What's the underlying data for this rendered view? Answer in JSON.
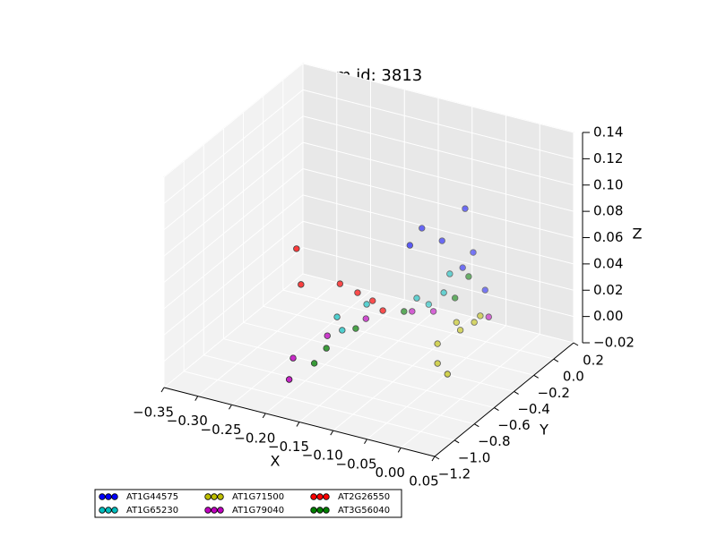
{
  "chart_data": {
    "type": "scatter3d",
    "title": "term id: 3813",
    "x_label": "X",
    "y_label": "Y",
    "z_label": "Z",
    "xlim": [
      -0.35,
      0.05
    ],
    "ylim": [
      -1.2,
      0.2
    ],
    "zlim": [
      -0.02,
      0.14
    ],
    "xticks": [
      {
        "value": -0.35,
        "label": "−0.35"
      },
      {
        "value": -0.3,
        "label": "−0.30"
      },
      {
        "value": -0.25,
        "label": "−0.25"
      },
      {
        "value": -0.2,
        "label": "−0.20"
      },
      {
        "value": -0.15,
        "label": "−0.15"
      },
      {
        "value": -0.1,
        "label": "−0.10"
      },
      {
        "value": -0.05,
        "label": "−0.05"
      },
      {
        "value": 0,
        "label": "0.00"
      },
      {
        "value": 0.05,
        "label": "0.05"
      }
    ],
    "yticks": [
      {
        "value": -1.2,
        "label": "−1.2"
      },
      {
        "value": -1.0,
        "label": "−1.0"
      },
      {
        "value": -0.8,
        "label": "−0.8"
      },
      {
        "value": -0.6,
        "label": "−0.6"
      },
      {
        "value": -0.4,
        "label": "−0.4"
      },
      {
        "value": -0.2,
        "label": "−0.2"
      },
      {
        "value": 0,
        "label": "0.0"
      },
      {
        "value": 0.2,
        "label": "0.2"
      }
    ],
    "zticks": [
      {
        "value": -0.02,
        "label": "−0.02"
      },
      {
        "value": 0,
        "label": "0.00"
      },
      {
        "value": 0.02,
        "label": "0.02"
      },
      {
        "value": 0.04,
        "label": "0.04"
      },
      {
        "value": 0.06,
        "label": "0.06"
      },
      {
        "value": 0.08,
        "label": "0.08"
      },
      {
        "value": 0.1,
        "label": "0.10"
      },
      {
        "value": 0.12,
        "label": "0.12"
      },
      {
        "value": 0.14,
        "label": "0.14"
      }
    ],
    "series": [
      {
        "name": "AT1G44575",
        "color": "#0000ff",
        "x": [
          -0.076,
          -0.134,
          -0.133,
          -0.112,
          -0.079,
          -0.088,
          -0.068
        ],
        "y": [
          -0.034,
          -0.074,
          -0.202,
          -0.021,
          0.068,
          0.023,
          0.113
        ],
        "z": [
          0.08,
          0.06,
          0.055,
          0.05,
          0.04,
          0.03,
          0.01
        ]
      },
      {
        "name": "AT1G65230",
        "color": "#00bfbf",
        "x": [
          -0.134,
          -0.094,
          -0.102,
          -0.191,
          -0.216,
          -0.21,
          -0.13
        ],
        "y": [
          -0.126,
          -0.066,
          -0.072,
          -0.242,
          -0.37,
          -0.359,
          -0.033
        ],
        "z": [
          0.01,
          0.03,
          0.015,
          0.005,
          0,
          -0.01,
          0
        ]
      },
      {
        "name": "AT1G71500",
        "color": "#bfbf00",
        "x": [
          -0.084,
          -0.075,
          -0.049,
          -0.074,
          -0.068,
          -0.054,
          -0.047
        ],
        "y": [
          -0.258,
          -0.319,
          -0.396,
          -0.135,
          -0.137,
          -0.092,
          -0.079
        ],
        "z": [
          -0.01,
          -0.02,
          -0.02,
          0,
          -0.005,
          0,
          0.005
        ]
      },
      {
        "name": "AT1G79040",
        "color": "#bf00bf",
        "x": [
          -0.22,
          -0.227,
          -0.201,
          -0.172,
          -0.13,
          -0.106,
          -0.036
        ],
        "y": [
          -0.825,
          -0.738,
          -0.57,
          -0.379,
          -0.2,
          -0.149,
          -0.069
        ],
        "z": [
          -0.02,
          -0.01,
          0,
          0.005,
          0.005,
          0.005,
          0.005
        ]
      },
      {
        "name": "AT2G26550",
        "color": "#ff0000",
        "x": [
          -0.247,
          -0.247,
          -0.204,
          -0.181,
          -0.162,
          -0.146
        ],
        "y": [
          -0.567,
          -0.522,
          -0.422,
          -0.402,
          -0.38,
          -0.386
        ],
        "z": [
          0.06,
          0.03,
          0.03,
          0.025,
          0.02,
          0.015
        ]
      },
      {
        "name": "AT3G56040",
        "color": "#008000",
        "x": [
          -0.214,
          -0.203,
          -0.179,
          -0.139,
          -0.082,
          -0.069
        ],
        "y": [
          -0.613,
          -0.566,
          -0.434,
          -0.22,
          -0.095,
          -0.046
        ],
        "z": [
          -0.02,
          -0.01,
          0,
          0.005,
          0.015,
          0.03
        ]
      }
    ]
  }
}
